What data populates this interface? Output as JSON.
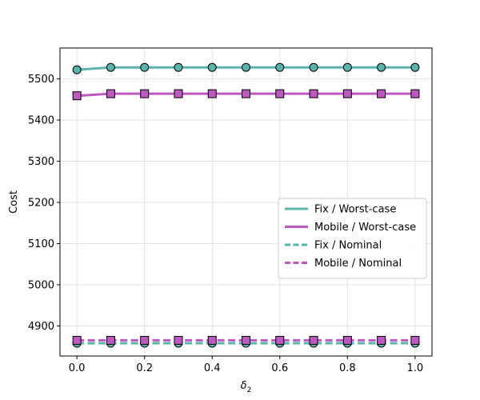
{
  "chart_data": {
    "type": "line",
    "title": "",
    "xlabel_main": "δ",
    "xlabel_sub": "2",
    "ylabel": "Cost",
    "x": [
      0.0,
      0.1,
      0.2,
      0.3,
      0.4,
      0.5,
      0.6,
      0.7,
      0.8,
      0.9,
      1.0
    ],
    "xlim": [
      -0.05,
      1.05
    ],
    "ylim": [
      4827,
      5575
    ],
    "xticks": [
      0.0,
      0.2,
      0.4,
      0.6,
      0.8,
      1.0
    ],
    "xtick_labels": [
      "0.0",
      "0.2",
      "0.4",
      "0.6",
      "0.8",
      "1.0"
    ],
    "yticks": [
      4900,
      5000,
      5100,
      5200,
      5300,
      5400,
      5500
    ],
    "ytick_labels": [
      "4900",
      "5000",
      "5100",
      "5200",
      "5300",
      "5400",
      "5500"
    ],
    "grid": true,
    "legend_position": "center-right",
    "series": [
      {
        "name": "Fix / Worst-case",
        "color": "#5ab4ac",
        "linestyle": "solid",
        "marker": "circle",
        "values": [
          5522,
          5528,
          5528,
          5528,
          5528,
          5528,
          5528,
          5528,
          5528,
          5528,
          5528
        ]
      },
      {
        "name": "Mobile / Worst-case",
        "color": "#bb59c1",
        "linestyle": "solid",
        "marker": "square",
        "values": [
          5459,
          5464,
          5464,
          5464,
          5464,
          5464,
          5464,
          5464,
          5464,
          5464,
          5464
        ]
      },
      {
        "name": "Fix / Nominal",
        "color": "#5ab4ac",
        "linestyle": "dashed",
        "marker": "circle",
        "values": [
          4858,
          4858,
          4858,
          4858,
          4858,
          4858,
          4858,
          4858,
          4858,
          4858,
          4858
        ]
      },
      {
        "name": "Mobile / Nominal",
        "color": "#bb59c1",
        "linestyle": "dashed",
        "marker": "square",
        "values": [
          4865,
          4865,
          4865,
          4865,
          4865,
          4865,
          4865,
          4865,
          4865,
          4865,
          4865
        ]
      }
    ]
  }
}
